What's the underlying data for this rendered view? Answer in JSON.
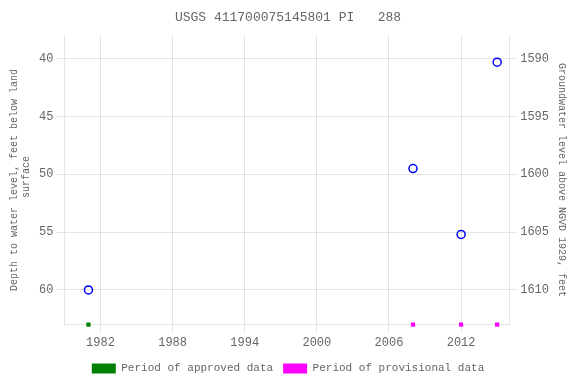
{
  "chart_data": {
    "type": "scatter",
    "title": "USGS 411700075145801 PI   288",
    "ylabel": "Depth to water level, feet below land\n surface",
    "y2label": "Groundwater level above NGVD 1929, feet",
    "xlim": [
      1979,
      2016
    ],
    "xticks": [
      1982,
      1988,
      1994,
      2000,
      2006,
      2012
    ],
    "ylim": [
      63,
      38
    ],
    "yticks": [
      40,
      45,
      50,
      55,
      60
    ],
    "y2lim": [
      1613,
      1588
    ],
    "y2ticks": [
      1590,
      1595,
      1600,
      1605,
      1610
    ],
    "grid": true,
    "legend": "bottom",
    "series": [
      {
        "x": [
          1981,
          2008,
          2012,
          2015
        ],
        "values": [
          60.0,
          49.5,
          55.2,
          40.3
        ],
        "color": "#0000ff",
        "marker": "open_circle"
      },
      {
        "name": "Period of approved data",
        "x": [
          1981
        ],
        "values": [
          63
        ],
        "color": "#008000",
        "marker": "square"
      },
      {
        "name": "Period of provisional data",
        "x": [
          2008,
          2012,
          2015
        ],
        "values": [
          63,
          63,
          63
        ],
        "color": "#ff00ff",
        "marker": "square"
      }
    ]
  }
}
